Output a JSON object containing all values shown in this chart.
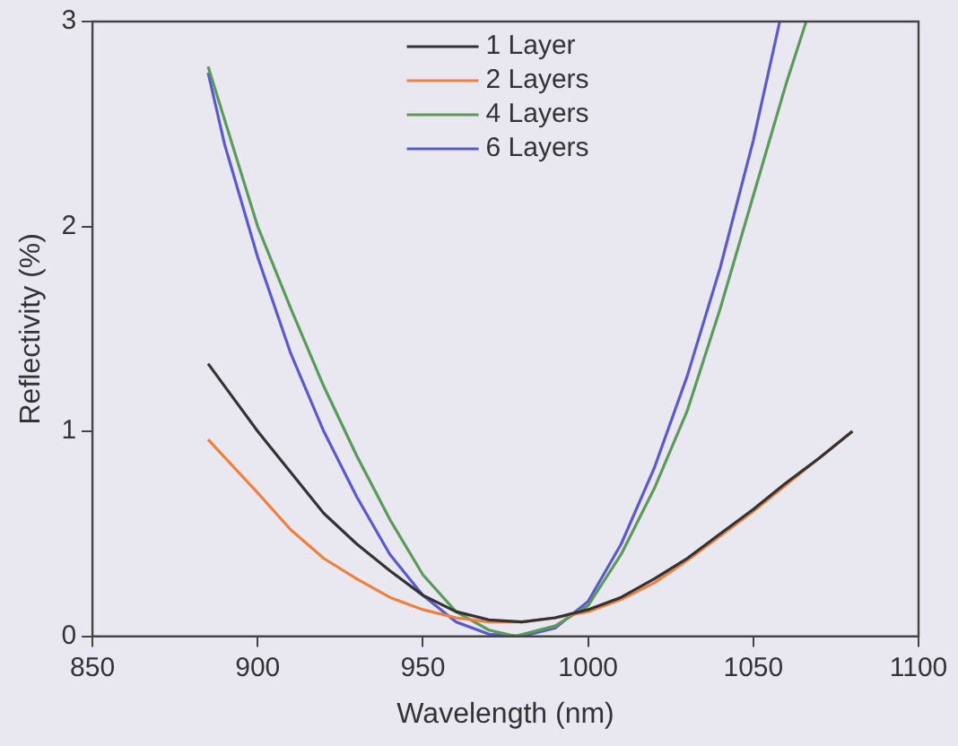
{
  "chart_data": {
    "type": "line",
    "xlabel": "Wavelength (nm)",
    "ylabel": "Reflectivity (%)",
    "xlim": [
      850,
      1100
    ],
    "xticks": [
      850,
      900,
      950,
      1000,
      1050,
      1100
    ],
    "ylim": [
      0,
      3
    ],
    "yticks": [
      0,
      1,
      2,
      3
    ],
    "grid": false,
    "legend": "top",
    "marker": "none",
    "line_style": "solid",
    "x": [
      885,
      900,
      910,
      920,
      930,
      940,
      950,
      960,
      970,
      980,
      990,
      1000,
      1010,
      1020,
      1030,
      1040,
      1050,
      1060,
      1070,
      1080
    ],
    "series": [
      {
        "name": "1 Layer",
        "color": "#333333",
        "values": [
          1.33,
          1.0,
          0.8,
          0.6,
          0.45,
          0.32,
          0.2,
          0.12,
          0.08,
          0.07,
          0.09,
          0.13,
          0.19,
          0.28,
          0.38,
          0.5,
          0.62,
          0.75,
          0.87,
          1.0
        ]
      },
      {
        "name": "2 Layers",
        "color": "#f08040",
        "values": [
          0.96,
          0.7,
          0.52,
          0.38,
          0.28,
          0.19,
          0.13,
          0.09,
          0.07,
          0.07,
          0.09,
          0.12,
          0.18,
          0.26,
          0.37,
          0.49,
          0.61,
          0.74,
          0.87,
          1.0
        ]
      },
      {
        "name": "4 Layers",
        "color": "#5a9a5a",
        "x": [
          885,
          900,
          910,
          920,
          930,
          940,
          950,
          960,
          970,
          978,
          990,
          1000,
          1010,
          1020,
          1030,
          1040,
          1050,
          1060,
          1066
        ],
        "values": [
          2.78,
          2.0,
          1.6,
          1.22,
          0.88,
          0.57,
          0.3,
          0.12,
          0.03,
          0,
          0.05,
          0.15,
          0.4,
          0.72,
          1.1,
          1.6,
          2.15,
          2.7,
          3.0
        ]
      },
      {
        "name": "6 Layers",
        "color": "#5a5ad0",
        "x": [
          885,
          890,
          900,
          910,
          920,
          930,
          940,
          950,
          960,
          970,
          980,
          990,
          1000,
          1010,
          1020,
          1030,
          1040,
          1050,
          1058
        ],
        "values": [
          2.75,
          2.4,
          1.85,
          1.38,
          1.0,
          0.68,
          0.4,
          0.2,
          0.07,
          0.01,
          0,
          0.04,
          0.17,
          0.45,
          0.82,
          1.27,
          1.8,
          2.42,
          3.0
        ]
      }
    ]
  }
}
